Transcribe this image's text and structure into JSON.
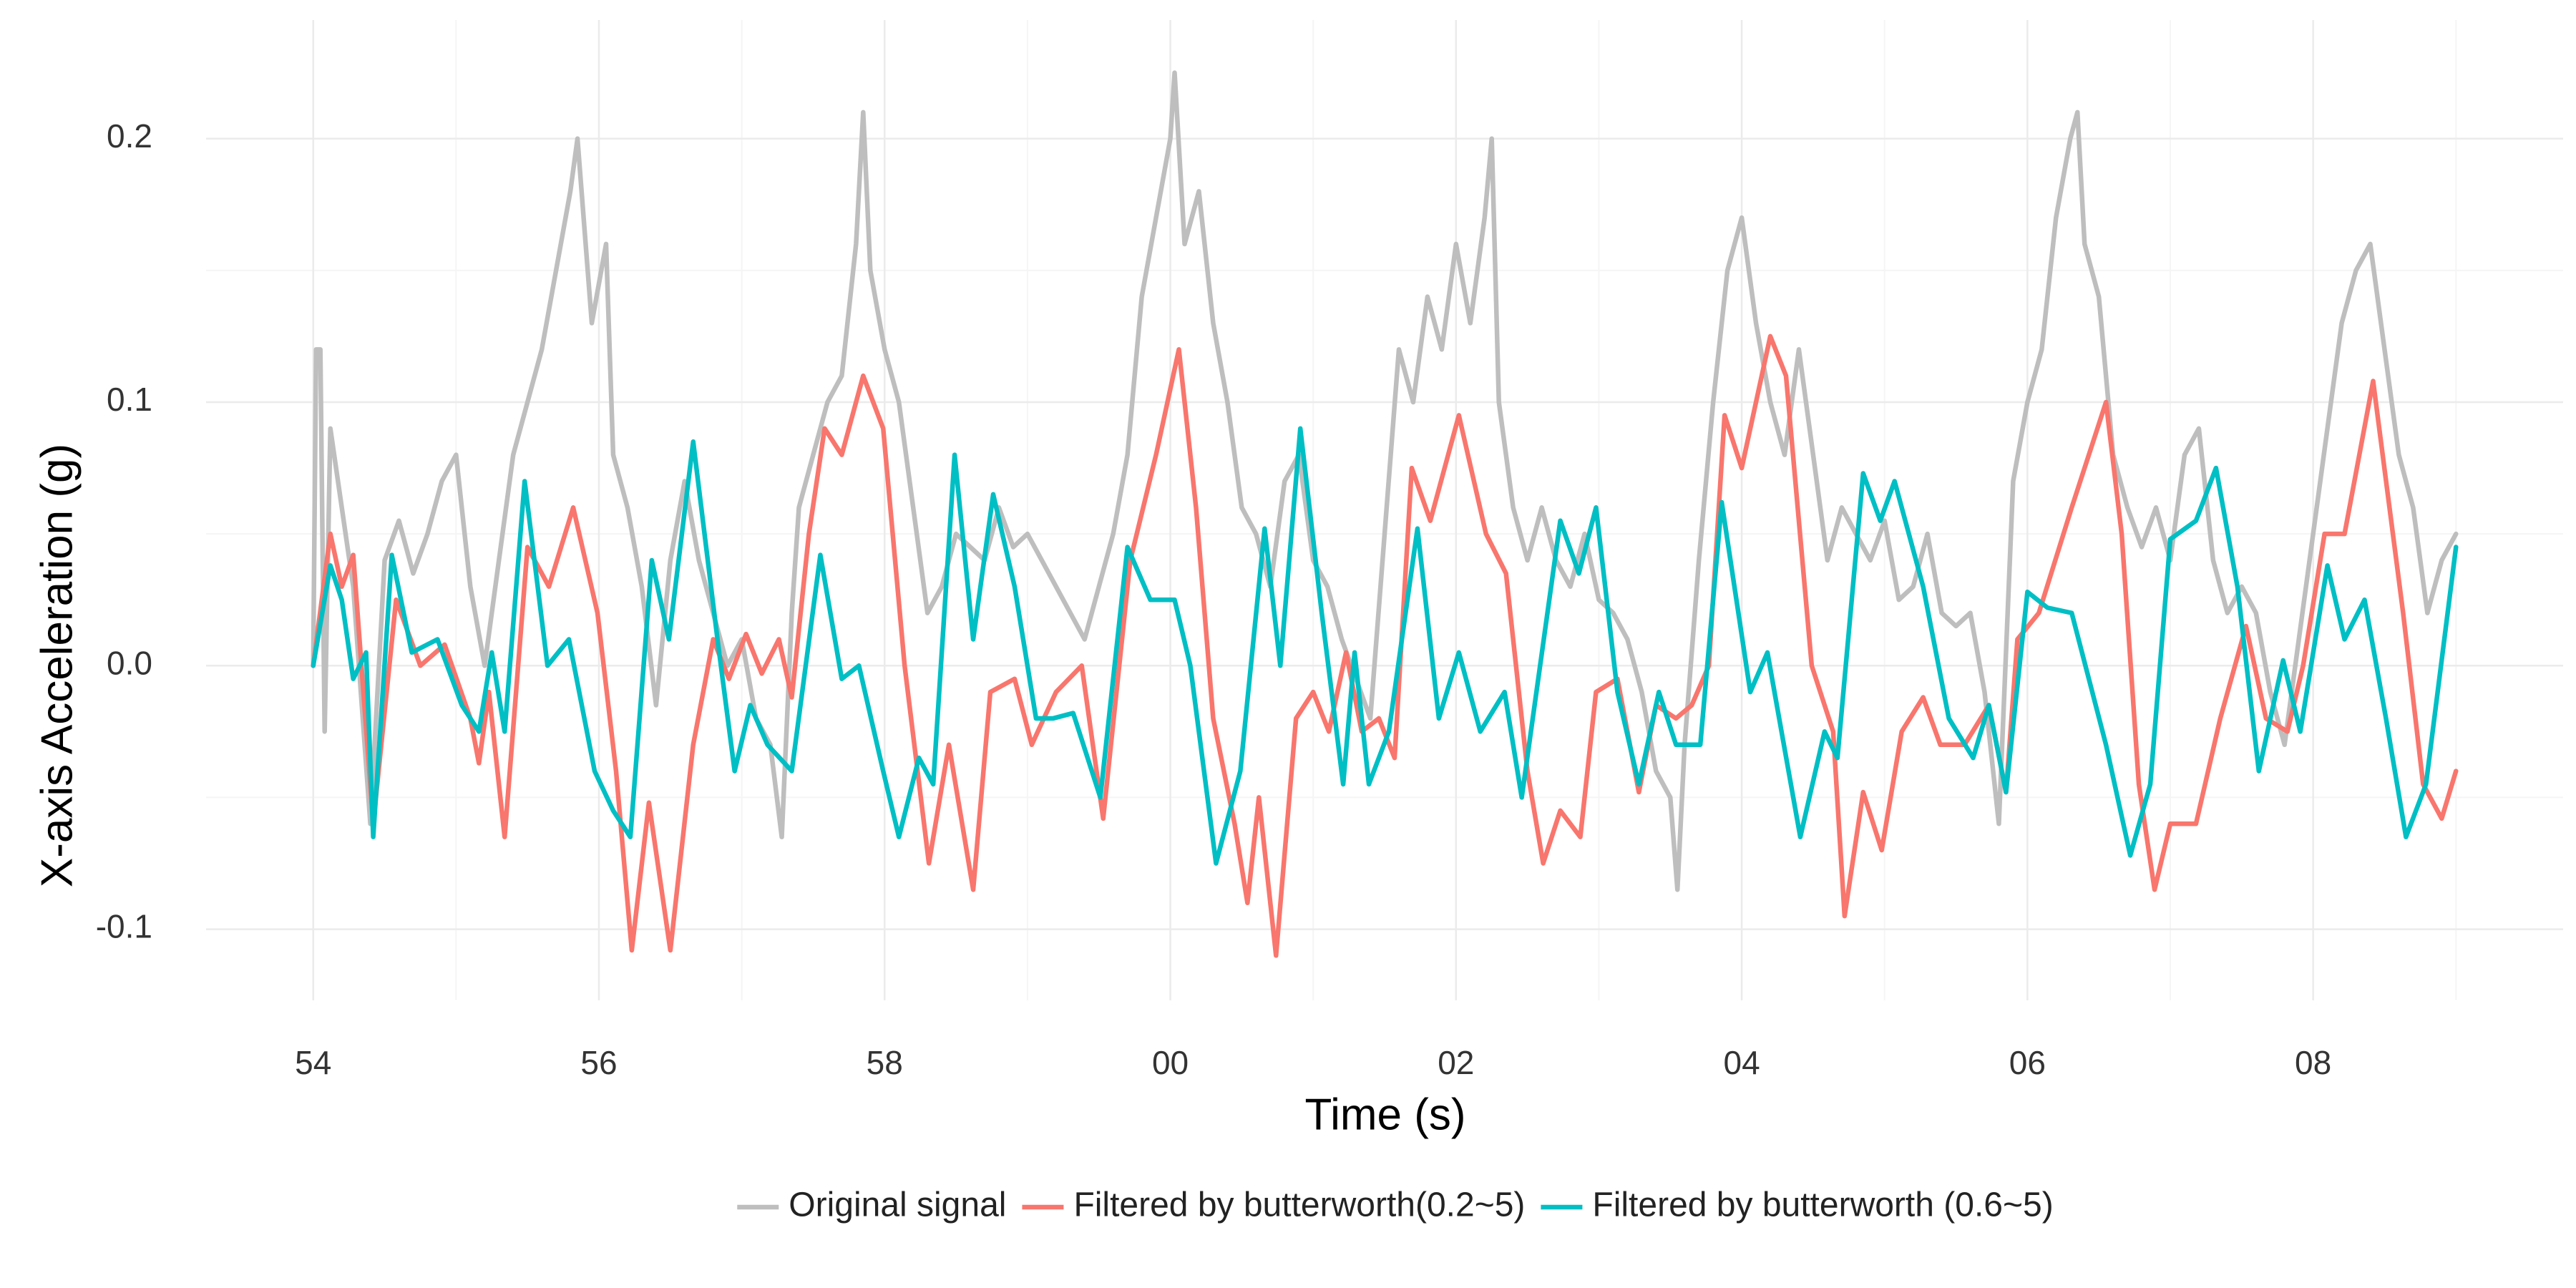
{
  "chart_data": {
    "type": "line",
    "x_label": "Time (s)",
    "y_label": "X-axis Acceleration (g)",
    "xlim": [
      53.25,
      69.75
    ],
    "ylim": [
      -0.127,
      0.245
    ],
    "xticks": [
      54,
      56,
      58,
      {
        "value": 60,
        "label": "00"
      },
      {
        "value": 62,
        "label": "02"
      },
      {
        "value": 64,
        "label": "04"
      },
      {
        "value": 66,
        "label": "06"
      },
      {
        "value": 68,
        "label": "08"
      }
    ],
    "x_minor_ticks": [
      55,
      57,
      59,
      61,
      63,
      65,
      67,
      69
    ],
    "yticks": [
      -0.1,
      {
        "value": 0,
        "label": "0.0"
      },
      0.1,
      0.2
    ],
    "y_minor_ticks": [
      -0.05,
      0.05,
      0.15
    ],
    "grid": true,
    "legend_position": "bottom",
    "series": [
      {
        "name": "Original signal",
        "color": "#bebebe",
        "x": [
          54.0,
          54.02,
          54.05,
          54.08,
          54.12,
          54.2,
          54.28,
          54.4,
          54.5,
          54.6,
          54.7,
          54.8,
          54.9,
          55.0,
          55.1,
          55.2,
          55.3,
          55.4,
          55.5,
          55.6,
          55.7,
          55.8,
          55.85,
          55.95,
          56.05,
          56.1,
          56.2,
          56.3,
          56.4,
          56.5,
          56.6,
          56.7,
          56.8,
          56.9,
          57.0,
          57.1,
          57.2,
          57.28,
          57.35,
          57.4,
          57.5,
          57.6,
          57.7,
          57.8,
          57.85,
          57.9,
          58.0,
          58.1,
          58.2,
          58.3,
          58.4,
          58.5,
          58.6,
          58.7,
          58.8,
          58.9,
          59.0,
          59.1,
          59.2,
          59.3,
          59.4,
          59.5,
          59.6,
          59.7,
          59.8,
          59.9,
          60.0,
          60.03,
          60.1,
          60.2,
          60.3,
          60.4,
          60.5,
          60.6,
          60.7,
          60.8,
          60.9,
          61.0,
          61.1,
          61.2,
          61.3,
          61.4,
          61.5,
          61.6,
          61.7,
          61.8,
          61.9,
          62.0,
          62.1,
          62.2,
          62.25,
          62.3,
          62.4,
          62.5,
          62.6,
          62.7,
          62.8,
          62.9,
          63.0,
          63.1,
          63.2,
          63.3,
          63.4,
          63.5,
          63.55,
          63.6,
          63.7,
          63.8,
          63.9,
          64.0,
          64.1,
          64.2,
          64.3,
          64.4,
          64.5,
          64.6,
          64.7,
          64.8,
          64.9,
          65.0,
          65.1,
          65.2,
          65.3,
          65.4,
          65.5,
          65.6,
          65.7,
          65.8,
          65.9,
          66.0,
          66.1,
          66.2,
          66.3,
          66.35,
          66.4,
          66.5,
          66.6,
          66.7,
          66.8,
          66.9,
          67.0,
          67.1,
          67.2,
          67.3,
          67.4,
          67.5,
          67.6,
          67.7,
          67.8,
          67.9,
          68.0,
          68.1,
          68.2,
          68.3,
          68.4,
          68.5,
          68.6,
          68.7,
          68.8,
          68.9,
          69.0
        ],
        "values": [
          0.0,
          0.12,
          0.12,
          -0.025,
          0.09,
          0.06,
          0.03,
          -0.06,
          0.04,
          0.055,
          0.035,
          0.05,
          0.07,
          0.08,
          0.03,
          0.0,
          0.04,
          0.08,
          0.1,
          0.12,
          0.15,
          0.18,
          0.2,
          0.13,
          0.16,
          0.08,
          0.06,
          0.03,
          -0.015,
          0.04,
          0.07,
          0.04,
          0.02,
          0.0,
          0.01,
          -0.02,
          -0.03,
          -0.065,
          0.02,
          0.06,
          0.08,
          0.1,
          0.11,
          0.16,
          0.21,
          0.15,
          0.12,
          0.1,
          0.06,
          0.02,
          0.03,
          0.05,
          0.045,
          0.04,
          0.06,
          0.045,
          0.05,
          0.04,
          0.03,
          0.02,
          0.01,
          0.03,
          0.05,
          0.08,
          0.14,
          0.17,
          0.2,
          0.225,
          0.16,
          0.18,
          0.13,
          0.1,
          0.06,
          0.05,
          0.03,
          0.07,
          0.08,
          0.04,
          0.03,
          0.01,
          -0.005,
          -0.02,
          0.05,
          0.12,
          0.1,
          0.14,
          0.12,
          0.16,
          0.13,
          0.17,
          0.2,
          0.1,
          0.06,
          0.04,
          0.06,
          0.04,
          0.03,
          0.05,
          0.025,
          0.02,
          0.01,
          -0.01,
          -0.04,
          -0.05,
          -0.085,
          -0.03,
          0.04,
          0.1,
          0.15,
          0.17,
          0.13,
          0.1,
          0.08,
          0.12,
          0.08,
          0.04,
          0.06,
          0.05,
          0.04,
          0.055,
          0.025,
          0.03,
          0.05,
          0.02,
          0.015,
          0.02,
          -0.01,
          -0.06,
          0.07,
          0.1,
          0.12,
          0.17,
          0.2,
          0.21,
          0.16,
          0.14,
          0.08,
          0.06,
          0.045,
          0.06,
          0.04,
          0.08,
          0.09,
          0.04,
          0.02,
          0.03,
          0.02,
          -0.01,
          -0.03,
          0.01,
          0.05,
          0.09,
          0.13,
          0.15,
          0.16,
          0.12,
          0.08,
          0.06,
          0.02,
          0.04,
          0.05
        ]
      },
      {
        "name": "Filtered by butterworth(0.2~5)",
        "color": "#f8766d",
        "x": [
          54.0,
          54.12,
          54.2,
          54.28,
          54.42,
          54.58,
          54.75,
          54.92,
          55.1,
          55.16,
          55.23,
          55.34,
          55.5,
          55.65,
          55.82,
          55.99,
          56.12,
          56.23,
          56.35,
          56.5,
          56.66,
          56.8,
          56.91,
          57.03,
          57.14,
          57.26,
          57.35,
          57.47,
          57.58,
          57.7,
          57.85,
          57.99,
          58.14,
          58.31,
          58.45,
          58.62,
          58.74,
          58.91,
          59.03,
          59.2,
          59.38,
          59.53,
          59.72,
          59.9,
          60.06,
          60.18,
          60.3,
          60.45,
          60.54,
          60.62,
          60.74,
          60.88,
          61.0,
          61.11,
          61.23,
          61.34,
          61.46,
          61.57,
          61.69,
          61.82,
          62.02,
          62.21,
          62.35,
          62.5,
          62.61,
          62.73,
          62.87,
          62.98,
          63.13,
          63.28,
          63.4,
          63.54,
          63.65,
          63.77,
          63.88,
          64.0,
          64.2,
          64.31,
          64.49,
          64.64,
          64.72,
          64.85,
          64.98,
          65.12,
          65.27,
          65.39,
          65.56,
          65.73,
          65.85,
          65.93,
          66.08,
          66.31,
          66.55,
          66.66,
          66.78,
          66.89,
          67.0,
          67.18,
          67.35,
          67.53,
          67.67,
          67.82,
          67.93,
          68.08,
          68.22,
          68.42,
          68.63,
          68.77,
          68.9,
          69.0
        ],
        "values": [
          0.0,
          0.05,
          0.03,
          0.042,
          -0.06,
          0.025,
          0.0,
          0.008,
          -0.02,
          -0.037,
          -0.01,
          -0.065,
          0.045,
          0.03,
          0.06,
          0.02,
          -0.04,
          -0.108,
          -0.052,
          -0.108,
          -0.03,
          0.01,
          -0.005,
          0.012,
          -0.003,
          0.01,
          -0.012,
          0.05,
          0.09,
          0.08,
          0.11,
          0.09,
          0.0,
          -0.075,
          -0.03,
          -0.085,
          -0.01,
          -0.005,
          -0.03,
          -0.01,
          0.0,
          -0.058,
          0.04,
          0.08,
          0.12,
          0.06,
          -0.02,
          -0.06,
          -0.09,
          -0.05,
          -0.11,
          -0.02,
          -0.01,
          -0.025,
          0.005,
          -0.025,
          -0.02,
          -0.035,
          0.075,
          0.055,
          0.095,
          0.05,
          0.035,
          -0.04,
          -0.075,
          -0.055,
          -0.065,
          -0.01,
          -0.005,
          -0.048,
          -0.015,
          -0.02,
          -0.015,
          0.0,
          0.095,
          0.075,
          0.125,
          0.11,
          0.0,
          -0.025,
          -0.095,
          -0.048,
          -0.07,
          -0.025,
          -0.012,
          -0.03,
          -0.03,
          -0.015,
          -0.048,
          0.01,
          0.02,
          0.06,
          0.1,
          0.05,
          -0.045,
          -0.085,
          -0.06,
          -0.06,
          -0.02,
          0.015,
          -0.02,
          -0.025,
          0.0,
          0.05,
          0.05,
          0.108,
          0.02,
          -0.045,
          -0.058,
          -0.04
        ]
      },
      {
        "name": "Filtered by butterworth (0.6~5)",
        "color": "#00bfc4",
        "x": [
          54.0,
          54.12,
          54.2,
          54.28,
          54.37,
          54.42,
          54.55,
          54.69,
          54.87,
          55.04,
          55.16,
          55.25,
          55.34,
          55.48,
          55.64,
          55.79,
          55.97,
          56.1,
          56.22,
          56.37,
          56.49,
          56.66,
          56.83,
          56.95,
          57.06,
          57.18,
          57.35,
          57.55,
          57.7,
          57.82,
          57.99,
          58.1,
          58.24,
          58.34,
          58.49,
          58.62,
          58.76,
          58.91,
          59.06,
          59.18,
          59.32,
          59.51,
          59.7,
          59.86,
          60.03,
          60.14,
          60.32,
          60.49,
          60.66,
          60.77,
          60.91,
          61.06,
          61.21,
          61.29,
          61.39,
          61.53,
          61.73,
          61.88,
          62.02,
          62.17,
          62.34,
          62.46,
          62.73,
          62.86,
          62.98,
          63.13,
          63.28,
          63.42,
          63.54,
          63.71,
          63.86,
          64.06,
          64.18,
          64.41,
          64.58,
          64.67,
          64.85,
          64.97,
          65.07,
          65.27,
          65.45,
          65.62,
          65.73,
          65.85,
          66.0,
          66.14,
          66.31,
          66.55,
          66.72,
          66.86,
          67.0,
          67.18,
          67.32,
          67.47,
          67.62,
          67.79,
          67.91,
          68.1,
          68.22,
          68.36,
          68.51,
          68.65,
          68.79,
          69.0
        ],
        "values": [
          0.0,
          0.038,
          0.025,
          -0.005,
          0.005,
          -0.065,
          0.042,
          0.005,
          0.01,
          -0.015,
          -0.025,
          0.005,
          -0.025,
          0.07,
          0.0,
          0.01,
          -0.04,
          -0.055,
          -0.065,
          0.04,
          0.01,
          0.085,
          0.01,
          -0.04,
          -0.015,
          -0.03,
          -0.04,
          0.042,
          -0.005,
          0.0,
          -0.04,
          -0.065,
          -0.035,
          -0.045,
          0.08,
          0.01,
          0.065,
          0.03,
          -0.02,
          -0.02,
          -0.018,
          -0.05,
          0.045,
          0.025,
          0.025,
          0.0,
          -0.075,
          -0.04,
          0.052,
          0.0,
          0.09,
          0.02,
          -0.045,
          0.005,
          -0.045,
          -0.025,
          0.052,
          -0.02,
          0.005,
          -0.025,
          -0.01,
          -0.05,
          0.055,
          0.035,
          0.06,
          -0.01,
          -0.045,
          -0.01,
          -0.03,
          -0.03,
          0.062,
          -0.01,
          0.005,
          -0.065,
          -0.025,
          -0.035,
          0.073,
          0.055,
          0.07,
          0.03,
          -0.02,
          -0.035,
          -0.015,
          -0.048,
          0.028,
          0.022,
          0.02,
          -0.03,
          -0.072,
          -0.045,
          0.048,
          0.055,
          0.075,
          0.03,
          -0.04,
          0.002,
          -0.025,
          0.038,
          0.01,
          0.025,
          -0.02,
          -0.065,
          -0.045,
          0.045
        ]
      }
    ]
  }
}
